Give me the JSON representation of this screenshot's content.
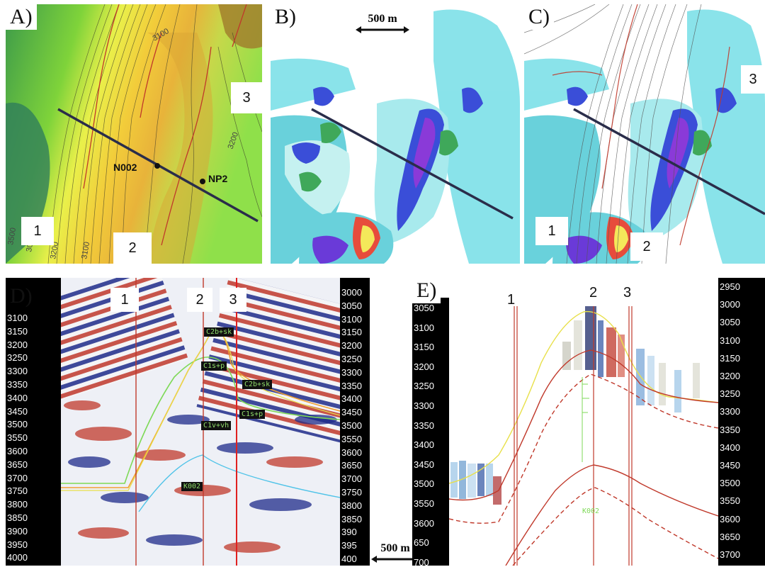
{
  "panels": {
    "a": {
      "label": "A)",
      "regions": [
        "1",
        "2",
        "3"
      ],
      "wells": [
        "N002",
        "NP2"
      ],
      "contours": [
        "3100",
        "3200",
        "3500",
        "3000",
        "3200",
        "3100"
      ]
    },
    "b": {
      "label": "B)",
      "scale": "500 m"
    },
    "c": {
      "label": "C)",
      "regions": [
        "1",
        "2",
        "3"
      ]
    },
    "d": {
      "label": "D)",
      "columns": [
        "1",
        "2",
        "3"
      ],
      "depth_ticks_left": [
        "3100",
        "3150",
        "3200",
        "3250",
        "3300",
        "3350",
        "3400",
        "3450",
        "3500",
        "3550",
        "3600",
        "3650",
        "3700",
        "3750",
        "3800",
        "3850",
        "3900",
        "3950",
        "4000"
      ],
      "depth_ticks_right": [
        "3000",
        "3050",
        "3100",
        "3150",
        "3200",
        "3250",
        "3300",
        "3350",
        "3400",
        "3450",
        "3500",
        "3550",
        "3600",
        "3650",
        "3700",
        "3750",
        "3800",
        "3850",
        "390",
        "395",
        "400"
      ],
      "horizon_tags": [
        "C2b+sk",
        "C1s+p",
        "C2b+sk",
        "C1s+p",
        "C1v+vh",
        "K002"
      ],
      "scale": "500 m"
    },
    "e": {
      "label": "E)",
      "columns": [
        "1",
        "2",
        "3"
      ],
      "depth_ticks_left": [
        "3050",
        "3100",
        "3150",
        "3200",
        "3250",
        "3300",
        "3350",
        "3400",
        "3450",
        "3500",
        "3550",
        "3600",
        "650",
        "700"
      ],
      "depth_ticks_right": [
        "2950",
        "3000",
        "3050",
        "3100",
        "3150",
        "3200",
        "3250",
        "3300",
        "3350",
        "3400",
        "3450",
        "3500",
        "3550",
        "3600",
        "3650",
        "3700"
      ],
      "well": "K002"
    }
  },
  "colors": {
    "line": "#2a2d4a",
    "fault": "#c0392b",
    "horizon_yellow": "#e8e04a",
    "horizon_green": "#7ed957"
  }
}
